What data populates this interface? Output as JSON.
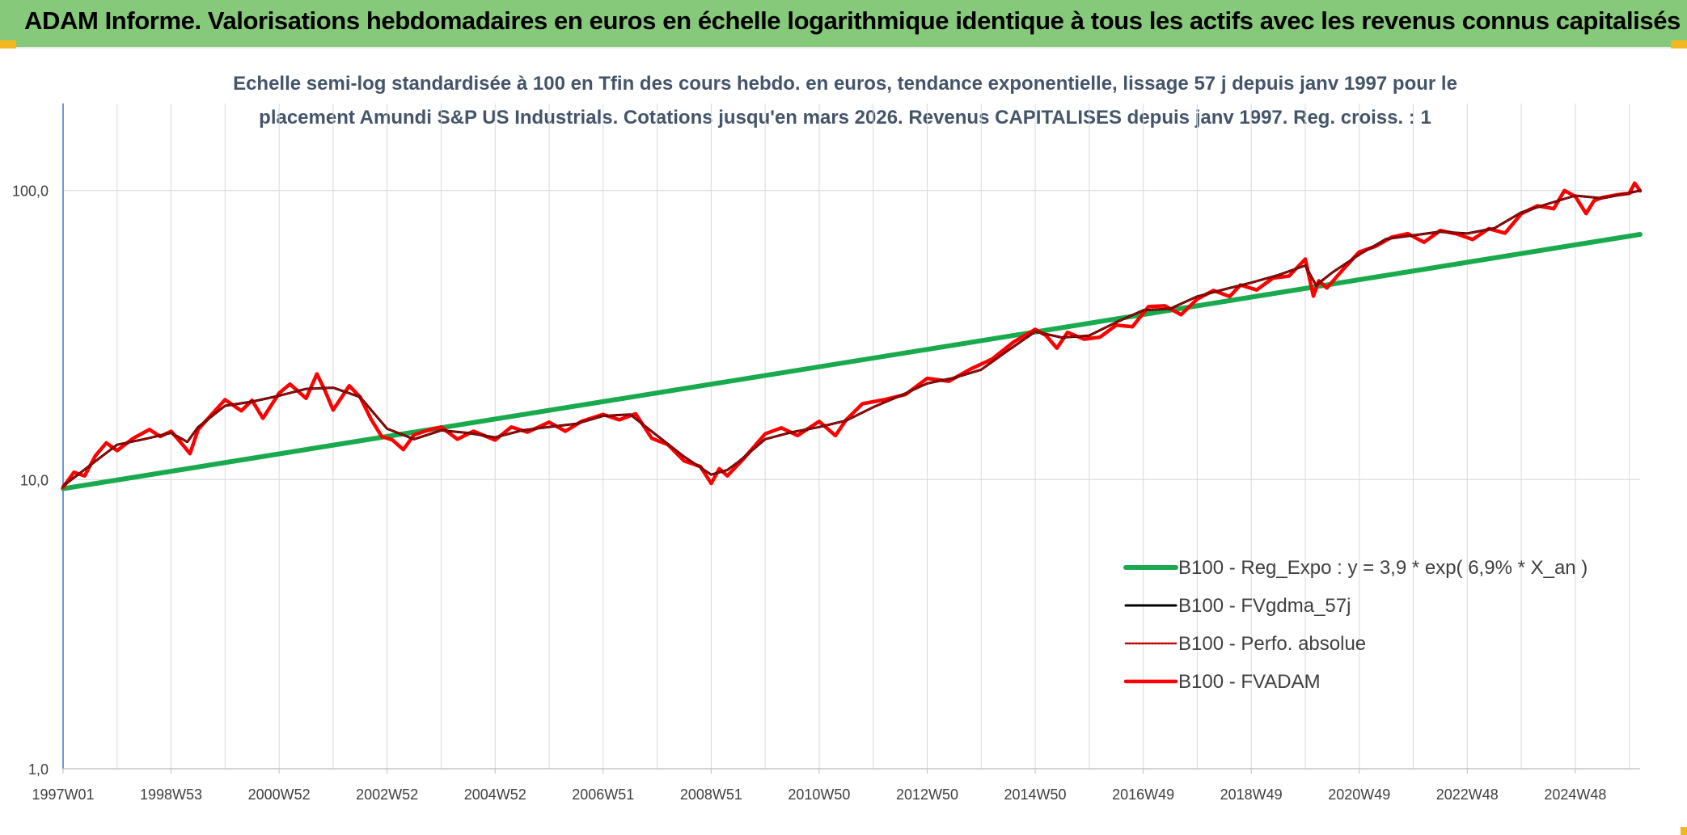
{
  "header": {
    "title": "ADAM Informe. Valorisations hebdomadaires en euros en échelle logarithmique identique à tous les actifs avec les revenus connus capitalisés"
  },
  "colors": {
    "header_bg": "#86c97a",
    "corner_accent": "#f2b61e",
    "regression": "#1aaa4e",
    "smoothed": "#000000",
    "absolute": "#c00000",
    "fvadam": "#ff0000",
    "grid": "#d9d9d9",
    "axis": "#4472c4"
  },
  "chart_data": {
    "type": "line",
    "subtitle_lines": [
      "Echelle semi-log standardisée à 100 en Tfin des cours hebdo. en euros, tendance exponentielle, lissage 57 j depuis janv 1997 pour le",
      "placement Amundi S&P US Industrials. Cotations jusqu'en mars 2026. Revenus CAPITALISES depuis janv 1997. Reg. croiss. : 1"
    ],
    "y_scale": "log",
    "ylim": [
      1,
      200
    ],
    "y_ticks": [
      {
        "value": 1,
        "label": "1,0"
      },
      {
        "value": 10,
        "label": "10,0"
      },
      {
        "value": 100,
        "label": "100,0"
      }
    ],
    "xlim": [
      1997.0,
      2026.2
    ],
    "x_ticks": [
      {
        "value": 1997.0,
        "label": "1997W01"
      },
      {
        "value": 1999.0,
        "label": "1998W53"
      },
      {
        "value": 2001.0,
        "label": "2000W52"
      },
      {
        "value": 2003.0,
        "label": "2002W52"
      },
      {
        "value": 2005.0,
        "label": "2004W52"
      },
      {
        "value": 2007.0,
        "label": "2006W51"
      },
      {
        "value": 2009.0,
        "label": "2008W51"
      },
      {
        "value": 2011.0,
        "label": "2010W50"
      },
      {
        "value": 2013.0,
        "label": "2012W50"
      },
      {
        "value": 2015.0,
        "label": "2014W50"
      },
      {
        "value": 2017.0,
        "label": "2016W49"
      },
      {
        "value": 2019.0,
        "label": "2018W49"
      },
      {
        "value": 2021.0,
        "label": "2020W49"
      },
      {
        "value": 2023.0,
        "label": "2022W48"
      },
      {
        "value": 2025.0,
        "label": "2024W48"
      }
    ],
    "grid": true,
    "legend_position": "bottom-right",
    "series": [
      {
        "name": "B100 - Reg_Expo : y = 3,9 * exp( 6,9% *  X_an )",
        "style": "regression",
        "x": [
          1997.0,
          2026.2
        ],
        "y": [
          9.3,
          70.5
        ]
      },
      {
        "name": "B100 - FVgdma_57j",
        "style": "smoothed",
        "x": [
          1997.0,
          1997.5,
          1998.0,
          1998.5,
          1999.0,
          1999.3,
          1999.5,
          2000.0,
          2000.5,
          2001.0,
          2001.5,
          2002.0,
          2002.5,
          2003.0,
          2003.5,
          2004.0,
          2004.5,
          2005.0,
          2005.5,
          2006.0,
          2006.5,
          2007.0,
          2007.5,
          2008.0,
          2008.5,
          2009.0,
          2009.3,
          2009.5,
          2010.0,
          2010.5,
          2011.0,
          2011.5,
          2012.0,
          2012.5,
          2013.0,
          2013.5,
          2014.0,
          2014.5,
          2015.0,
          2015.5,
          2016.0,
          2016.5,
          2017.0,
          2017.5,
          2018.0,
          2018.5,
          2019.0,
          2019.5,
          2020.0,
          2020.2,
          2020.5,
          2021.0,
          2021.5,
          2022.0,
          2022.5,
          2023.0,
          2023.5,
          2024.0,
          2024.5,
          2025.0,
          2025.5,
          2026.0,
          2026.2
        ],
        "y": [
          9.5,
          11.2,
          13.2,
          13.8,
          14.5,
          13.5,
          15.2,
          18.0,
          18.6,
          19.5,
          20.6,
          20.8,
          19.3,
          15.0,
          13.8,
          14.8,
          14.5,
          14.0,
          14.8,
          15.2,
          15.6,
          16.6,
          16.8,
          14.2,
          12.0,
          10.4,
          10.8,
          11.5,
          13.8,
          14.6,
          15.2,
          16.0,
          17.8,
          19.5,
          21.5,
          22.5,
          24.0,
          28.0,
          32.5,
          31.0,
          31.5,
          35.0,
          38.5,
          39.0,
          43.0,
          45.5,
          48.0,
          51.0,
          55.0,
          47.0,
          52.0,
          60.0,
          68.0,
          70.0,
          72.0,
          71.0,
          74.0,
          84.0,
          90.0,
          96.0,
          94.0,
          98.0,
          100.0
        ]
      },
      {
        "name": "B100 - Perfo. absolue",
        "style": "absolute",
        "x": [
          1997.0,
          1997.5,
          1998.0,
          1998.5,
          1999.0,
          1999.3,
          1999.5,
          2000.0,
          2000.5,
          2001.0,
          2001.5,
          2002.0,
          2002.5,
          2003.0,
          2003.5,
          2004.0,
          2004.5,
          2005.0,
          2005.5,
          2006.0,
          2006.5,
          2007.0,
          2007.5,
          2008.0,
          2008.5,
          2009.0,
          2009.3,
          2009.5,
          2010.0,
          2010.5,
          2011.0,
          2011.5,
          2012.0,
          2012.5,
          2013.0,
          2013.5,
          2014.0,
          2014.5,
          2015.0,
          2015.5,
          2016.0,
          2016.5,
          2017.0,
          2017.5,
          2018.0,
          2018.5,
          2019.0,
          2019.5,
          2020.0,
          2020.2,
          2020.5,
          2021.0,
          2021.5,
          2022.0,
          2022.5,
          2023.0,
          2023.5,
          2024.0,
          2024.5,
          2025.0,
          2025.5,
          2026.0,
          2026.2
        ],
        "y": [
          9.5,
          11.2,
          13.2,
          13.8,
          14.5,
          13.5,
          15.2,
          18.0,
          18.6,
          19.5,
          20.6,
          20.8,
          19.3,
          15.0,
          13.8,
          14.8,
          14.5,
          14.0,
          14.8,
          15.2,
          15.6,
          16.6,
          16.8,
          14.2,
          12.0,
          10.4,
          10.8,
          11.5,
          13.8,
          14.6,
          15.2,
          16.0,
          17.8,
          19.5,
          21.5,
          22.5,
          24.0,
          28.0,
          32.5,
          31.0,
          31.5,
          35.0,
          38.5,
          39.0,
          43.0,
          45.5,
          48.0,
          51.0,
          55.0,
          47.0,
          52.0,
          60.0,
          68.0,
          70.0,
          72.0,
          71.0,
          74.0,
          84.0,
          90.0,
          96.0,
          94.0,
          98.0,
          100.0
        ]
      },
      {
        "name": "B100 - FVADAM",
        "style": "fvadam",
        "x": [
          1997.0,
          1997.2,
          1997.4,
          1997.6,
          1997.8,
          1998.0,
          1998.3,
          1998.6,
          1998.8,
          1999.0,
          1999.2,
          1999.35,
          1999.5,
          1999.8,
          2000.0,
          2000.3,
          2000.5,
          2000.7,
          2001.0,
          2001.2,
          2001.5,
          2001.7,
          2001.85,
          2002.0,
          2002.3,
          2002.5,
          2002.7,
          2002.9,
          2003.1,
          2003.3,
          2003.5,
          2003.8,
          2004.0,
          2004.3,
          2004.6,
          2005.0,
          2005.3,
          2005.6,
          2006.0,
          2006.3,
          2006.6,
          2007.0,
          2007.3,
          2007.6,
          2007.9,
          2008.2,
          2008.5,
          2008.8,
          2009.0,
          2009.15,
          2009.3,
          2009.6,
          2010.0,
          2010.3,
          2010.6,
          2011.0,
          2011.3,
          2011.5,
          2011.8,
          2012.2,
          2012.6,
          2013.0,
          2013.4,
          2013.8,
          2014.2,
          2014.6,
          2015.0,
          2015.2,
          2015.4,
          2015.6,
          2015.9,
          2016.2,
          2016.5,
          2016.8,
          2017.1,
          2017.4,
          2017.7,
          2018.0,
          2018.3,
          2018.6,
          2018.8,
          2019.1,
          2019.4,
          2019.7,
          2020.0,
          2020.15,
          2020.25,
          2020.4,
          2020.7,
          2021.0,
          2021.3,
          2021.6,
          2021.9,
          2022.2,
          2022.5,
          2022.8,
          2023.1,
          2023.4,
          2023.7,
          2024.0,
          2024.3,
          2024.6,
          2024.8,
          2025.0,
          2025.2,
          2025.35,
          2025.5,
          2025.8,
          2026.0,
          2026.1,
          2026.2
        ],
        "y": [
          9.4,
          10.6,
          10.3,
          12.1,
          13.4,
          12.6,
          13.9,
          14.9,
          14.1,
          14.7,
          13.3,
          12.3,
          14.9,
          17.2,
          18.9,
          17.3,
          18.8,
          16.3,
          19.9,
          21.4,
          19.1,
          23.2,
          20.3,
          17.4,
          21.1,
          19.3,
          16.2,
          14.1,
          13.7,
          12.7,
          14.3,
          14.9,
          15.2,
          13.8,
          14.7,
          13.7,
          15.2,
          14.6,
          15.8,
          14.7,
          15.9,
          16.8,
          16.1,
          16.9,
          13.9,
          13.2,
          11.6,
          11.1,
          9.7,
          10.9,
          10.3,
          11.8,
          14.4,
          15.1,
          14.2,
          15.9,
          14.2,
          16.1,
          18.3,
          18.9,
          19.7,
          22.4,
          21.9,
          24.1,
          26.1,
          29.9,
          33.1,
          31.5,
          28.5,
          32.3,
          30.6,
          31.1,
          34.2,
          33.8,
          39.7,
          39.9,
          37.2,
          42.1,
          45.1,
          43.0,
          47.1,
          45.3,
          49.8,
          50.6,
          57.9,
          43.1,
          48.7,
          46.0,
          53.3,
          61.3,
          64.1,
          68.9,
          70.9,
          66.2,
          72.7,
          70.8,
          67.7,
          73.8,
          71.2,
          83.1,
          88.5,
          86.5,
          100.0,
          95.3,
          83.2,
          92.3,
          94.6,
          96.8,
          97.7,
          106.0,
          99.7
        ]
      }
    ]
  }
}
